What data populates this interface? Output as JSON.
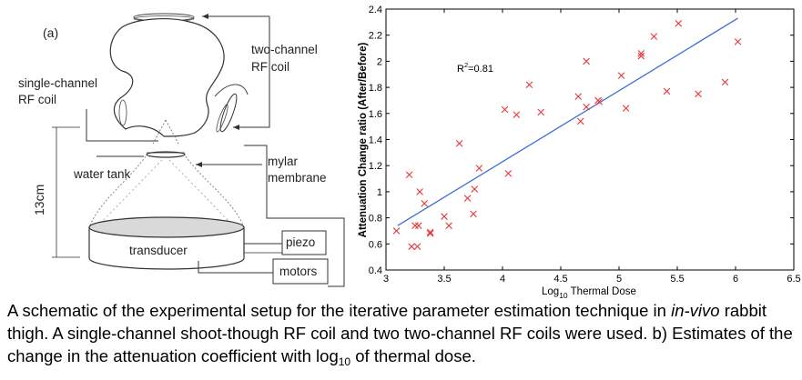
{
  "schematic": {
    "panel_label": "(a)",
    "labels": {
      "two_channel_line1": "two-channel",
      "two_channel_line2": "RF coil",
      "single_channel_line1": "single-channel",
      "single_channel_line2": "RF coil",
      "mylar_line1": "mylar",
      "mylar_line2": "membrane",
      "water_tank": "water tank",
      "transducer": "transducer",
      "piezo": "piezo",
      "motors": "motors",
      "height": "13cm"
    }
  },
  "chart_data": {
    "type": "scatter",
    "xlabel_main": "Log",
    "xlabel_sub": "10",
    "xlabel_rest": " Thermal Dose",
    "ylabel": "Attenuation Change ratio (After/Before)",
    "xlim": [
      3,
      6.5
    ],
    "ylim": [
      0.4,
      2.4
    ],
    "xticks": [
      "3",
      "3.5",
      "4",
      "4.5",
      "5",
      "5.5",
      "6",
      "6.5"
    ],
    "yticks": [
      "0.4",
      "0.6",
      "0.8",
      "1",
      "1.2",
      "1.4",
      "1.6",
      "1.8",
      "2",
      "2.2",
      "2.4"
    ],
    "annotation_base": "R",
    "annotation_sup": "2",
    "annotation_rest": "=0.81",
    "marker": "x",
    "marker_color": "#e8393a",
    "line_color": "#3a6fd8",
    "fit_line": {
      "x": [
        3.1,
        6.02
      ],
      "y": [
        0.74,
        2.33
      ]
    },
    "points": [
      {
        "x": 3.09,
        "y": 0.7
      },
      {
        "x": 3.2,
        "y": 1.13
      },
      {
        "x": 3.22,
        "y": 0.58
      },
      {
        "x": 3.25,
        "y": 0.74
      },
      {
        "x": 3.27,
        "y": 0.58
      },
      {
        "x": 3.28,
        "y": 0.74
      },
      {
        "x": 3.29,
        "y": 1.0
      },
      {
        "x": 3.33,
        "y": 0.91
      },
      {
        "x": 3.38,
        "y": 0.68
      },
      {
        "x": 3.38,
        "y": 0.69
      },
      {
        "x": 3.5,
        "y": 0.81
      },
      {
        "x": 3.54,
        "y": 0.74
      },
      {
        "x": 3.63,
        "y": 1.37
      },
      {
        "x": 3.7,
        "y": 0.95
      },
      {
        "x": 3.75,
        "y": 0.83
      },
      {
        "x": 3.76,
        "y": 1.02
      },
      {
        "x": 3.8,
        "y": 1.18
      },
      {
        "x": 4.02,
        "y": 1.63
      },
      {
        "x": 4.05,
        "y": 1.14
      },
      {
        "x": 4.12,
        "y": 1.59
      },
      {
        "x": 4.23,
        "y": 1.82
      },
      {
        "x": 4.33,
        "y": 1.61
      },
      {
        "x": 4.65,
        "y": 1.73
      },
      {
        "x": 4.67,
        "y": 1.54
      },
      {
        "x": 4.72,
        "y": 2.0
      },
      {
        "x": 4.72,
        "y": 1.65
      },
      {
        "x": 4.82,
        "y": 1.7
      },
      {
        "x": 4.83,
        "y": 1.69
      },
      {
        "x": 5.02,
        "y": 1.89
      },
      {
        "x": 5.06,
        "y": 1.64
      },
      {
        "x": 5.19,
        "y": 2.04
      },
      {
        "x": 5.19,
        "y": 2.06
      },
      {
        "x": 5.3,
        "y": 2.19
      },
      {
        "x": 5.41,
        "y": 1.77
      },
      {
        "x": 5.51,
        "y": 2.29
      },
      {
        "x": 5.68,
        "y": 1.75
      },
      {
        "x": 5.91,
        "y": 1.84
      },
      {
        "x": 6.02,
        "y": 2.15
      }
    ]
  },
  "caption": {
    "p1": "A schematic of the experimental setup for the iterative parameter estimation technique in ",
    "p2": "in-vivo",
    "p3": " rabbit thigh. A single-channel shoot-though RF coil and two two-channel RF coils were used. b) Estimates of the change in the attenuation coefficient with log",
    "p4": "10",
    "p5": " of thermal dose."
  }
}
